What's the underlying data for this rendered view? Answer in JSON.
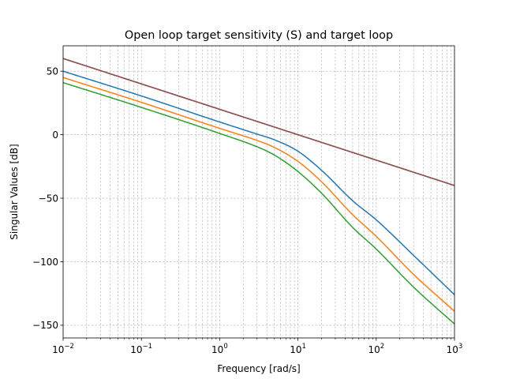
{
  "chart_data": {
    "type": "line",
    "title": "Open loop target sensitivity (S) and target loop",
    "xlabel": "Frequency [rad/s]",
    "ylabel": "Singular Values [dB]",
    "xscale": "log",
    "xlim": [
      0.01,
      1000
    ],
    "ylim": [
      -160,
      70
    ],
    "xticks": [
      {
        "base": "10",
        "exp": "−2",
        "value": 0.01
      },
      {
        "base": "10",
        "exp": "−1",
        "value": 0.1
      },
      {
        "base": "10",
        "exp": "0",
        "value": 1
      },
      {
        "base": "10",
        "exp": "1",
        "value": 10
      },
      {
        "base": "10",
        "exp": "2",
        "value": 100
      },
      {
        "base": "10",
        "exp": "3",
        "value": 1000
      }
    ],
    "yticks": [
      {
        "label": "50",
        "value": 50
      },
      {
        "label": "0",
        "value": 0
      },
      {
        "label": "−50",
        "value": -50
      },
      {
        "label": "−100",
        "value": -100
      },
      {
        "label": "−150",
        "value": -150
      }
    ],
    "grid": "major and minor, dashed",
    "legend": "none",
    "series": [
      {
        "color": "#1f77b4",
        "x": [
          0.01,
          0.1,
          1,
          3,
          5,
          10,
          20,
          50,
          100,
          300,
          1000
        ],
        "y": [
          50,
          30.5,
          10,
          0.5,
          -4,
          -13,
          -28,
          -52,
          -67,
          -95,
          -126
        ]
      },
      {
        "color": "#ff7f0e",
        "x": [
          0.01,
          0.1,
          1,
          3,
          5,
          10,
          20,
          50,
          100,
          300,
          1000
        ],
        "y": [
          45,
          25.5,
          5,
          -4.5,
          -10,
          -21,
          -37,
          -63,
          -80,
          -110,
          -139
        ]
      },
      {
        "color": "#2ca02c",
        "x": [
          0.01,
          0.1,
          1,
          3,
          5,
          10,
          20,
          50,
          100,
          300,
          1000
        ],
        "y": [
          41,
          21.5,
          1,
          -9.5,
          -16,
          -29,
          -46,
          -73,
          -90,
          -120,
          -149
        ]
      },
      {
        "color": "#d62728",
        "x": [
          0.01,
          1000
        ],
        "y": [
          60,
          -40
        ]
      },
      {
        "color": "#9467bd",
        "x": [
          0.01,
          1000
        ],
        "y": [
          60,
          -40
        ]
      },
      {
        "color": "#8c564b",
        "x": [
          0.01,
          1000
        ],
        "y": [
          60,
          -40
        ]
      }
    ]
  }
}
